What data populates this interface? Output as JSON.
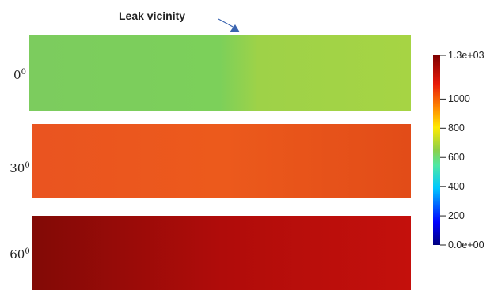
{
  "annotation": "Leak vicinity",
  "colors": {
    "annotation_arrow": "#3a64b0",
    "colormap": [
      "#00007f",
      "#0000ff",
      "#00c8ff",
      "#4fe8a4",
      "#8cd04a",
      "#ffea00",
      "#ff8c00",
      "#e81a0a",
      "#7f0000"
    ]
  },
  "panels": [
    {
      "angle": "0",
      "degree": "0"
    },
    {
      "angle": "30",
      "degree": "0"
    },
    {
      "angle": "60",
      "degree": "0"
    }
  ],
  "colorbar": {
    "min": 0,
    "max": 1300,
    "ticks": [
      {
        "value": 1300,
        "label": "1.3e+03"
      },
      {
        "value": 1000,
        "label": "1000"
      },
      {
        "value": 800,
        "label": "800"
      },
      {
        "value": 600,
        "label": "600"
      },
      {
        "value": 400,
        "label": "400"
      },
      {
        "value": 200,
        "label": "200"
      },
      {
        "value": 0,
        "label": "0.0e+00"
      }
    ]
  }
}
